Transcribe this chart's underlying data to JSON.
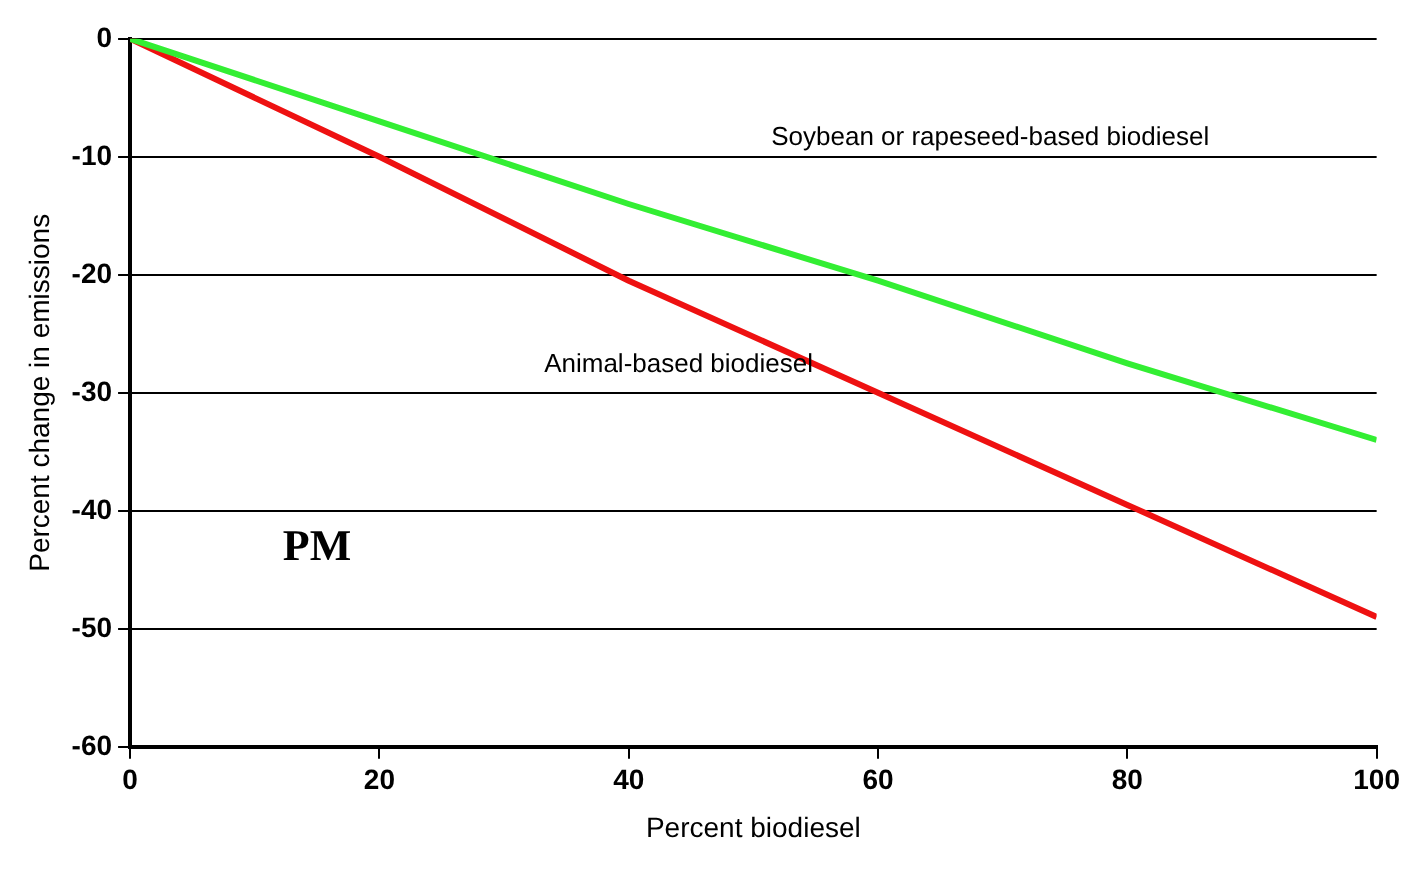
{
  "chart_data": {
    "type": "line",
    "xlabel": "Percent biodiesel",
    "ylabel": "Percent change in emissions",
    "x": [
      0,
      20,
      40,
      60,
      80,
      100
    ],
    "series": [
      {
        "color": "#33ee33",
        "values": [
          0,
          -7,
          -14,
          -20.5,
          -27.5,
          -34
        ]
      },
      {
        "color": "#ee1111",
        "values": [
          0,
          -10,
          -20.5,
          -30,
          -39.5,
          -49
        ]
      }
    ],
    "xlim": [
      0,
      100
    ],
    "xticks": [
      0,
      20,
      40,
      60,
      80,
      100
    ],
    "ylim": [
      -60,
      0
    ],
    "yticks": [
      -60,
      -50,
      -40,
      -30,
      -20,
      -10,
      0
    ],
    "grid": "y",
    "legend": false,
    "marker": "none",
    "line_style": "solid",
    "annotations": [
      "Soybean or rapeseed-based biodiesel",
      "Animal-based biodiesel",
      "PM"
    ]
  }
}
